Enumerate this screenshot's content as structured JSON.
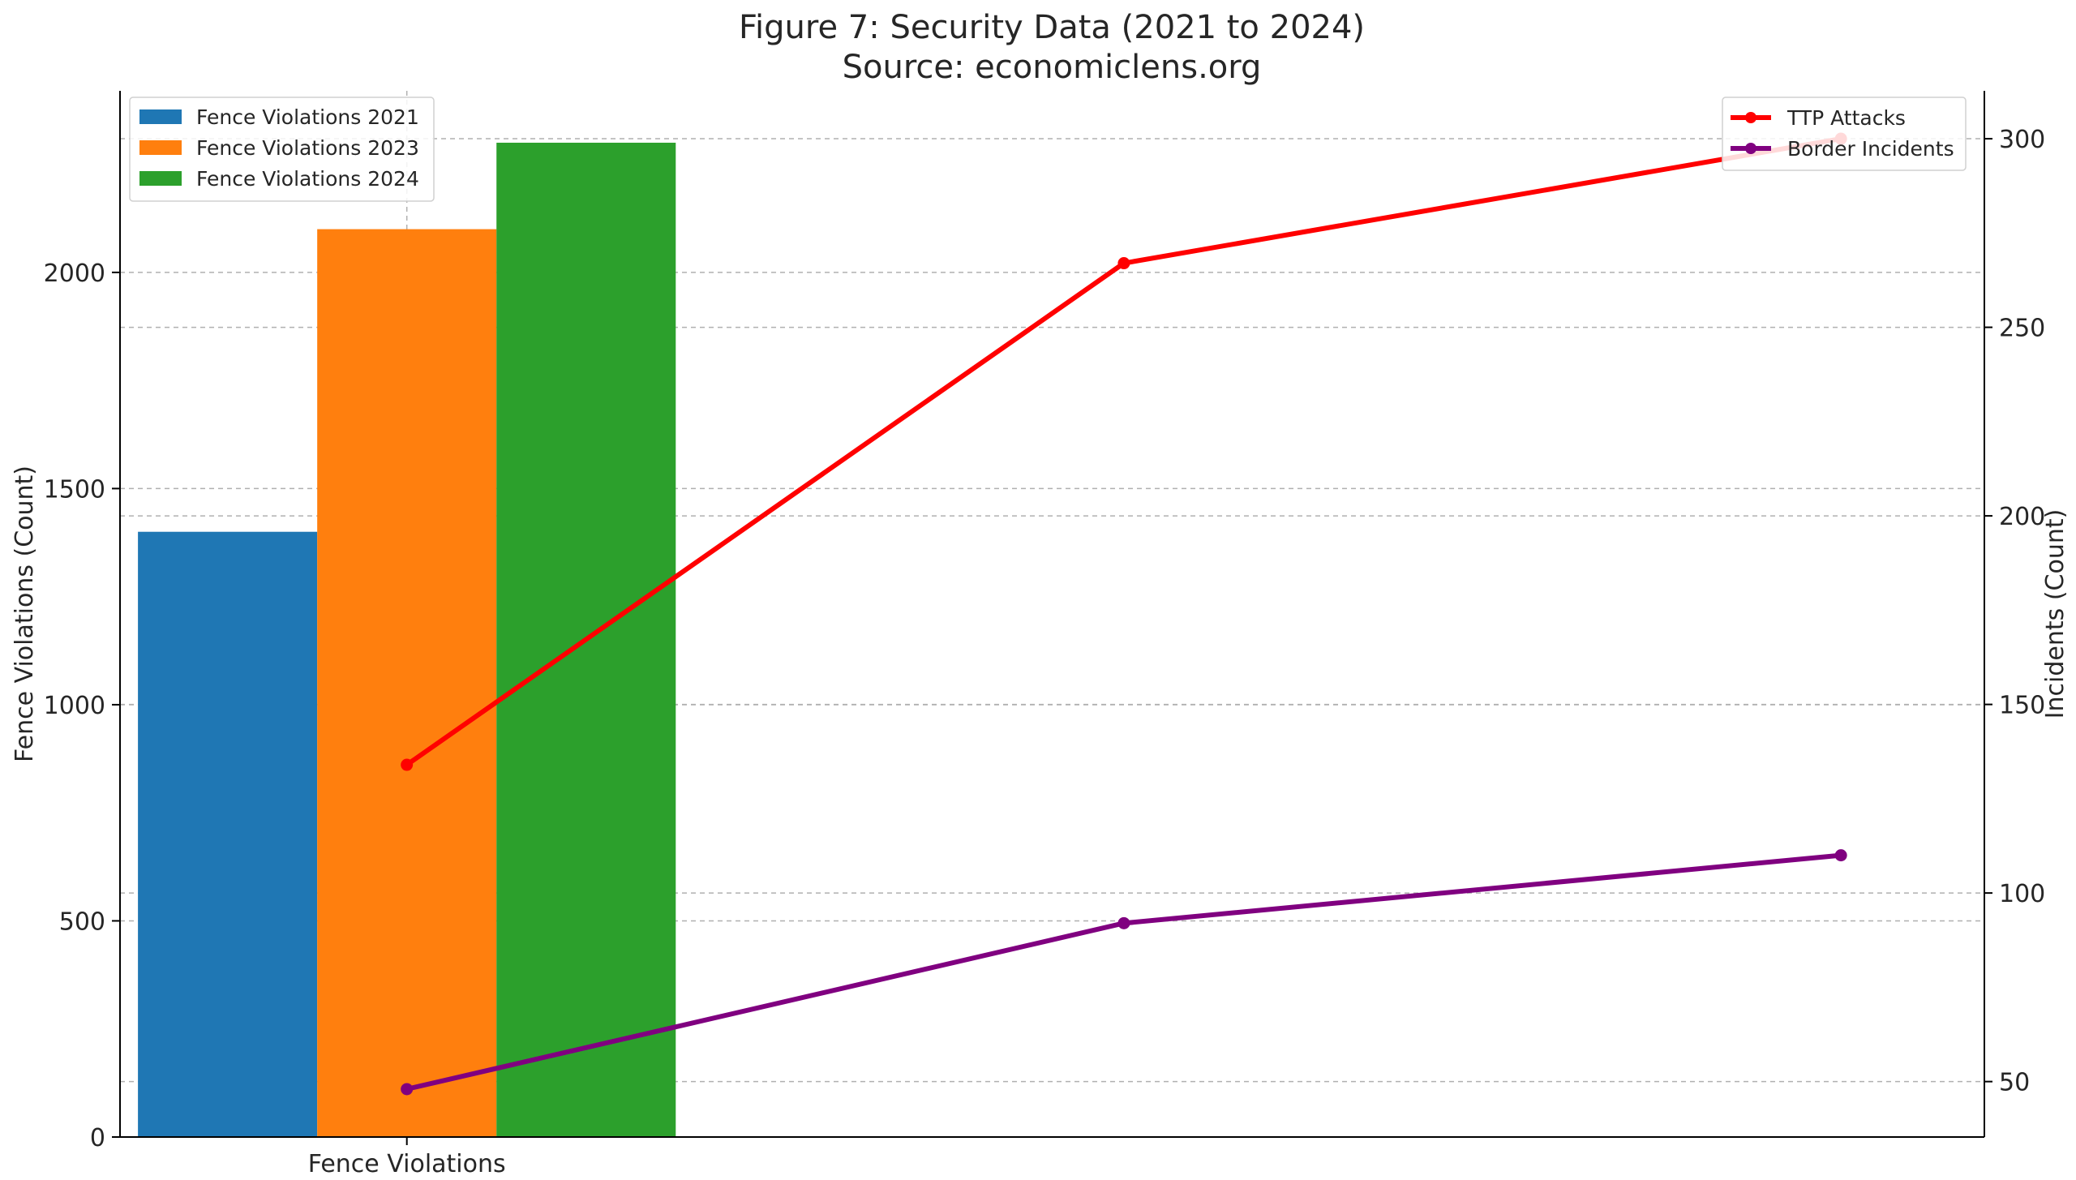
{
  "chart_data": {
    "type": "bar+line",
    "title_line1": "Figure 7: Security Data (2021 to 2024)",
    "title_line2": "Source: economiclens.org",
    "ylabel_left": "Fence Violations (Count)",
    "ylabel_right": "Incidents (Count)",
    "categories": [
      "Fence Violations"
    ],
    "bar_series": [
      {
        "name": "Fence Violations 2021",
        "values": [
          1400
        ],
        "color": "#1f77b4"
      },
      {
        "name": "Fence Violations 2023",
        "values": [
          2100
        ],
        "color": "#ff7f0e"
      },
      {
        "name": "Fence Violations 2024",
        "values": [
          2300
        ],
        "color": "#2ca02c"
      }
    ],
    "left_axis": {
      "ylim": [
        0,
        2420
      ],
      "ticks": [
        0,
        500,
        1000,
        1500,
        2000
      ]
    },
    "line_x": [
      0,
      1,
      2
    ],
    "line_series": [
      {
        "name": "TTP Attacks",
        "values": [
          134,
          267,
          300
        ],
        "color": "#ff0000"
      },
      {
        "name": "Border Incidents",
        "values": [
          48,
          92,
          110
        ],
        "color": "#800080"
      }
    ],
    "right_axis": {
      "ylim": [
        35.3,
        312.7
      ],
      "ticks": [
        50,
        100,
        150,
        200,
        250,
        300
      ]
    },
    "grid": true,
    "bar_legend_position": "upper-left",
    "line_legend_position": "upper-right"
  }
}
